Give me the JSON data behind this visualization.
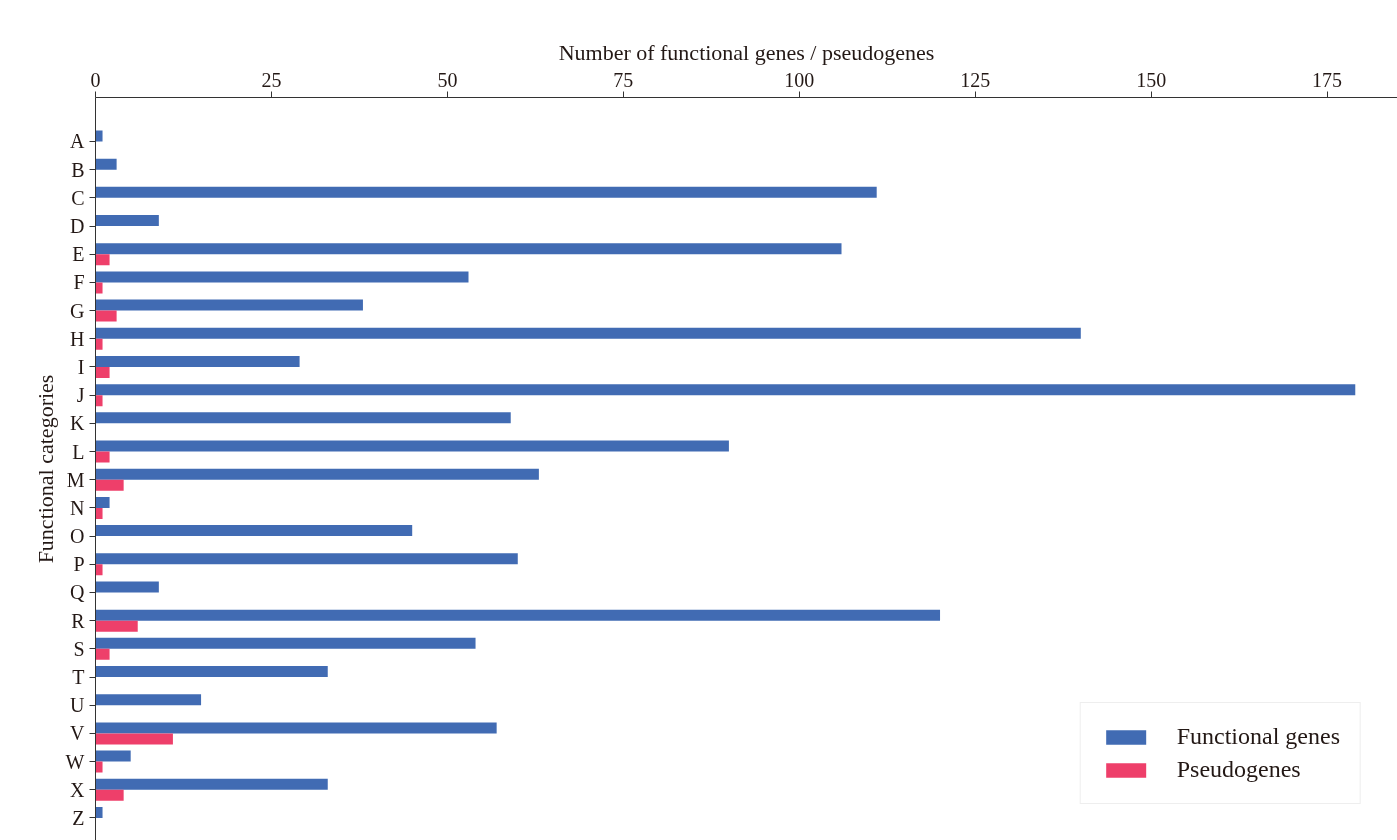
{
  "chart_data": {
    "type": "bar",
    "orientation": "horizontal",
    "xlabel": "Number of functional genes / pseudogenes",
    "ylabel": "Functional categories",
    "categories": [
      "A",
      "B",
      "C",
      "D",
      "E",
      "F",
      "G",
      "H",
      "I",
      "J",
      "K",
      "L",
      "M",
      "N",
      "O",
      "P",
      "Q",
      "R",
      "S",
      "T",
      "U",
      "V",
      "W",
      "X",
      "Z"
    ],
    "series": [
      {
        "name": "Functional genes",
        "color": "#416bb3",
        "values": [
          1,
          3,
          111,
          9,
          106,
          53,
          38,
          140,
          29,
          179,
          59,
          90,
          63,
          2,
          45,
          60,
          9,
          120,
          54,
          33,
          15,
          57,
          5,
          33,
          1
        ]
      },
      {
        "name": "Pseudogenes",
        "color": "#ee3f6a",
        "values": [
          0,
          0,
          0,
          0,
          2,
          1,
          3,
          1,
          2,
          1,
          0,
          2,
          4,
          1,
          0,
          1,
          0,
          6,
          2,
          0,
          0,
          11,
          1,
          4,
          0
        ]
      }
    ],
    "xlim": [
      0,
      185
    ],
    "xticks": [
      0,
      25,
      50,
      75,
      100,
      125,
      150,
      175
    ],
    "grid": false,
    "legend": "bottom right"
  }
}
